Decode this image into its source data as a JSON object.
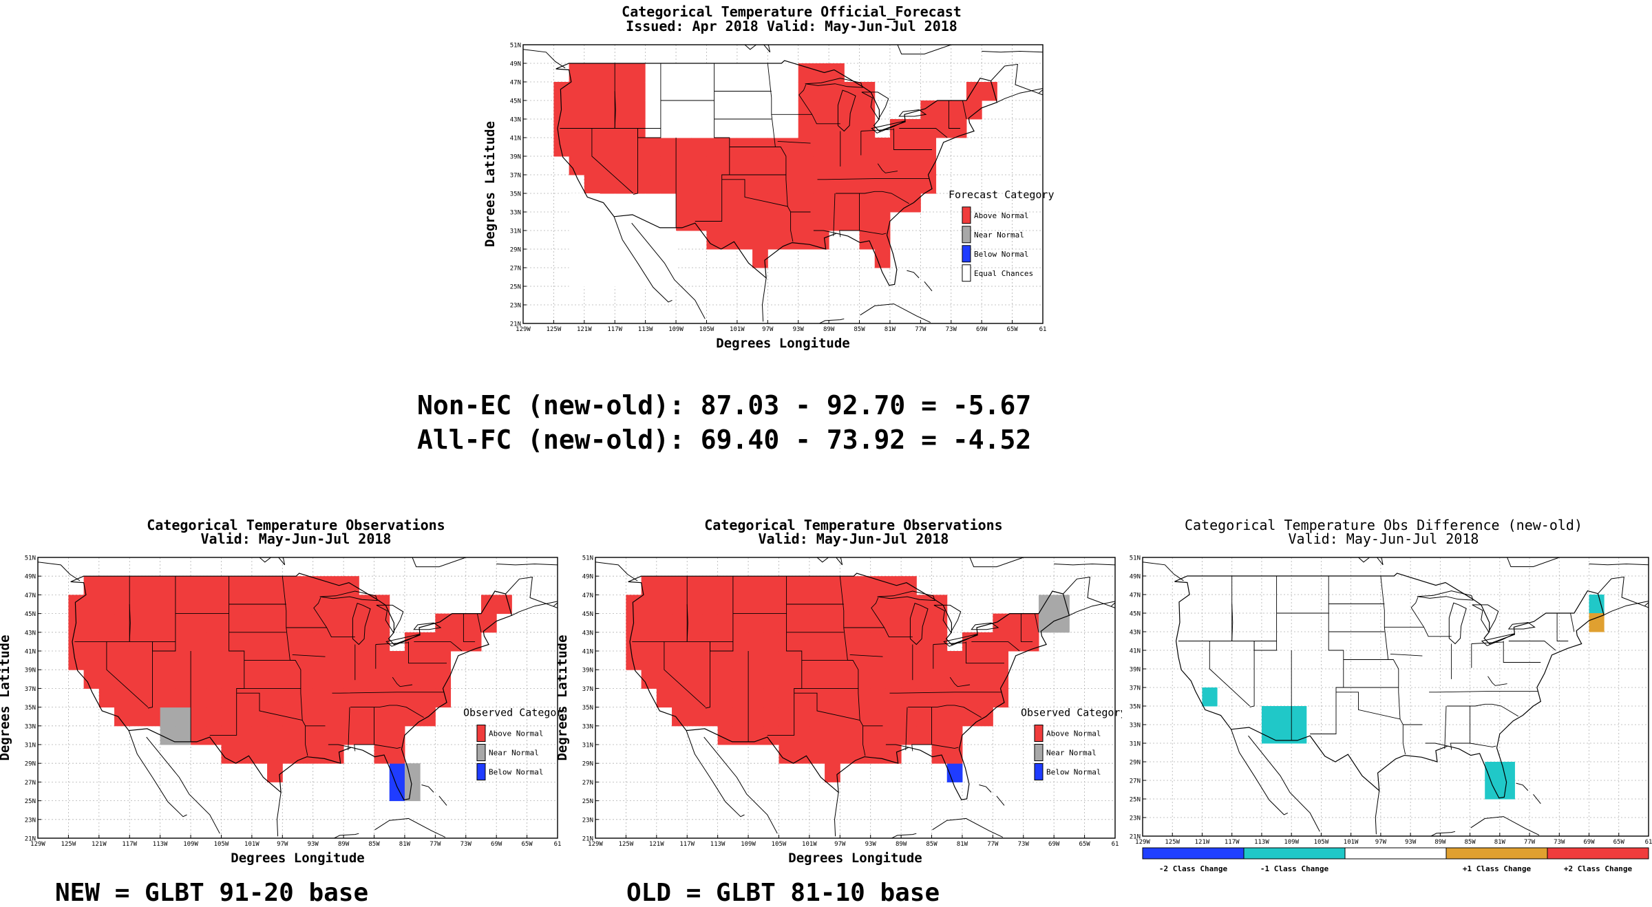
{
  "forecast": {
    "title1": "Categorical Temperature Official_Forecast",
    "title2": "Issued: Apr 2018 Valid: May-Jun-Jul 2018",
    "xlabel": "Degrees Longitude",
    "ylabel": "Degrees Latitude",
    "legend_title": "Forecast Category",
    "legend": [
      {
        "label": "Above Normal",
        "color": "#f03c3c"
      },
      {
        "label": "Near Normal",
        "color": "#a8a8a8"
      },
      {
        "label": "Below Normal",
        "color": "#1f3cff"
      },
      {
        "label": "Equal Chances",
        "color": "#ffffff"
      }
    ]
  },
  "stats": {
    "line1": "Non-EC (new-old): 87.03 - 92.70 = -5.67",
    "line2": "All-FC (new-old): 69.40 - 73.92 = -4.52"
  },
  "obs_new": {
    "title1": "Categorical Temperature Observations",
    "title2": "Valid: May-Jun-Jul 2018",
    "xlabel": "Degrees Longitude",
    "ylabel": "Degrees Latitude",
    "legend_title": "Observed Category",
    "legend": [
      {
        "label": "Above Normal",
        "color": "#f03c3c"
      },
      {
        "label": "Near Normal",
        "color": "#a8a8a8"
      },
      {
        "label": "Below Normal",
        "color": "#1f3cff"
      }
    ],
    "caption": "NEW = GLBT 91-20 base"
  },
  "obs_old": {
    "title1": "Categorical Temperature Observations",
    "title2": "Valid: May-Jun-Jul 2018",
    "xlabel": "Degrees Longitude",
    "ylabel": "Degrees Latitude",
    "legend_title": "Observed Category",
    "legend": [
      {
        "label": "Above Normal",
        "color": "#f03c3c"
      },
      {
        "label": "Near Normal",
        "color": "#a8a8a8"
      },
      {
        "label": "Below Normal",
        "color": "#1f3cff"
      }
    ],
    "caption": "OLD = GLBT 81-10 base"
  },
  "diff": {
    "title1": "Categorical Temperature Obs Difference (new-old)",
    "title2": "Valid: May-Jun-Jul 2018",
    "colorbar": [
      {
        "label": "-2 Class Change",
        "color": "#2040ff"
      },
      {
        "label": "-1 Class Change",
        "color": "#20c8c8"
      },
      {
        "label": "",
        "color": "#ffffff"
      },
      {
        "label": "+1 Class Change",
        "color": "#e0a030"
      },
      {
        "label": "+2 Class Change",
        "color": "#f03c3c"
      }
    ]
  },
  "axes": {
    "lat_ticks": [
      "21N",
      "23N",
      "25N",
      "27N",
      "29N",
      "31N",
      "33N",
      "35N",
      "37N",
      "39N",
      "41N",
      "43N",
      "45N",
      "47N",
      "49N",
      "51N"
    ],
    "lon_ticks": [
      "129W",
      "125W",
      "121W",
      "117W",
      "113W",
      "109W",
      "105W",
      "101W",
      "97W",
      "93W",
      "89W",
      "85W",
      "81W",
      "77W",
      "73W",
      "69W",
      "65W",
      "61"
    ]
  },
  "chart_data": [
    {
      "type": "heatmap",
      "title": "Categorical Temperature Official_Forecast",
      "subtitle": "Issued: Apr 2018 Valid: May-Jun-Jul 2018",
      "xlabel": "Degrees Longitude",
      "ylabel": "Degrees Latitude",
      "xlim": [
        -129,
        -61
      ],
      "ylim": [
        21,
        51
      ],
      "grid": true,
      "legend_placement": "right-middle",
      "categories": [
        "Above Normal",
        "Near Normal",
        "Below Normal",
        "Equal Chances"
      ],
      "regions": [
        {
          "category": "Above Normal",
          "lon": [
            -125,
            -67
          ],
          "lat": [
            25,
            49
          ]
        },
        {
          "category": "Equal Chances",
          "lon": [
            -113,
            -93
          ],
          "lat": [
            41,
            49
          ]
        },
        {
          "category": "Equal Chances",
          "lon": [
            -123,
            -109
          ],
          "lat": [
            25,
            35
          ]
        }
      ]
    },
    {
      "type": "heatmap",
      "title": "Categorical Temperature Observations",
      "subtitle": "Valid: May-Jun-Jul 2018",
      "xlabel": "Degrees Longitude",
      "ylabel": "Degrees Latitude",
      "xlim": [
        -129,
        -61
      ],
      "ylim": [
        21,
        51
      ],
      "grid": true,
      "legend_placement": "right-middle",
      "categories": [
        "Above Normal",
        "Near Normal",
        "Below Normal"
      ],
      "regions": [
        {
          "category": "Above Normal",
          "lon": [
            -125,
            -67
          ],
          "lat": [
            25,
            49
          ]
        },
        {
          "category": "Near Normal",
          "lon": [
            -113,
            -109
          ],
          "lat": [
            31,
            35
          ]
        },
        {
          "category": "Near Normal",
          "lon": [
            -83,
            -79
          ],
          "lat": [
            25,
            29
          ]
        },
        {
          "category": "Below Normal",
          "lon": [
            -83,
            -81
          ],
          "lat": [
            25,
            29
          ]
        }
      ]
    },
    {
      "type": "heatmap",
      "title": "Categorical Temperature Observations",
      "subtitle": "Valid: May-Jun-Jul 2018",
      "xlabel": "Degrees Longitude",
      "ylabel": "Degrees Latitude",
      "xlim": [
        -129,
        -61
      ],
      "ylim": [
        21,
        51
      ],
      "grid": true,
      "legend_placement": "right-middle",
      "categories": [
        "Above Normal",
        "Near Normal",
        "Below Normal"
      ],
      "regions": [
        {
          "category": "Above Normal",
          "lon": [
            -125,
            -67
          ],
          "lat": [
            25,
            49
          ]
        },
        {
          "category": "Near Normal",
          "lon": [
            -71,
            -67
          ],
          "lat": [
            43,
            47
          ]
        },
        {
          "category": "Below Normal",
          "lon": [
            -83,
            -81
          ],
          "lat": [
            27,
            29
          ]
        }
      ]
    },
    {
      "type": "heatmap",
      "title": "Categorical Temperature Obs Difference (new-old)",
      "subtitle": "Valid: May-Jun-Jul 2018",
      "xlim": [
        -129,
        -61
      ],
      "ylim": [
        21,
        51
      ],
      "grid": true,
      "legend_placement": "bottom",
      "categories": [
        "-2 Class Change",
        "-1 Class Change",
        "+1 Class Change",
        "+2 Class Change"
      ],
      "regions": [
        {
          "category": "-1 Class Change",
          "lon": [
            -121,
            -119
          ],
          "lat": [
            35,
            37
          ]
        },
        {
          "category": "-1 Class Change",
          "lon": [
            -113,
            -107
          ],
          "lat": [
            31,
            35
          ]
        },
        {
          "category": "-1 Class Change",
          "lon": [
            -83,
            -79
          ],
          "lat": [
            25,
            29
          ]
        },
        {
          "category": "-1 Class Change",
          "lon": [
            -69,
            -67
          ],
          "lat": [
            45,
            47
          ]
        },
        {
          "category": "+1 Class Change",
          "lon": [
            -69,
            -67
          ],
          "lat": [
            43,
            45
          ]
        }
      ]
    }
  ]
}
